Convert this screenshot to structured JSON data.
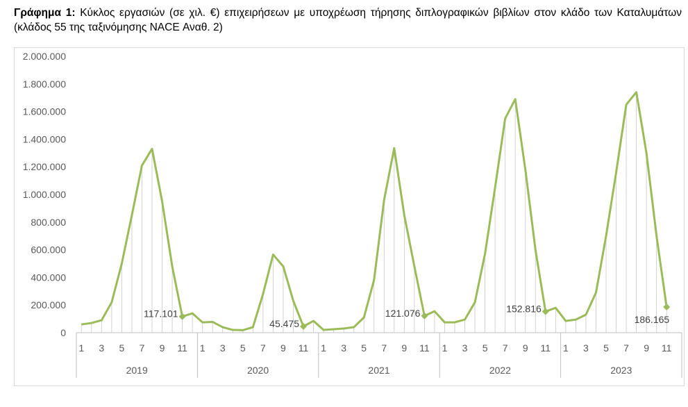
{
  "title": {
    "prefix": "Γράφημα 1:",
    "text": "Κύκλος εργασιών (σε χιλ. €) επιχειρήσεων με υποχρέωση τήρησης διπλογραφικών βιβλίων στον κλάδο των Καταλυμάτων (κλάδος 55 της ταξινόμησης NACE Αναθ. 2)"
  },
  "chart_data": {
    "type": "line",
    "title": "Κύκλος εργασιών (σε χιλ. €) επιχειρήσεων με υποχρέωση τήρησης διπλογραφικών βιβλίων στον κλάδο των Καταλυμάτων (κλάδος 55 της ταξινόμησης NACE Αναθ. 2)",
    "xlabel": "",
    "ylabel": "",
    "ylim": [
      0,
      2000000
    ],
    "y_ticks": [
      "0",
      "200.000",
      "400.000",
      "600.000",
      "800.000",
      "1.000.000",
      "1.200.000",
      "1.400.000",
      "1.600.000",
      "1.800.000",
      "2.000.000"
    ],
    "years": [
      "2019",
      "2020",
      "2021",
      "2022",
      "2023"
    ],
    "month_tick_labels": [
      "1",
      "3",
      "5",
      "7",
      "9",
      "11"
    ],
    "series": [
      {
        "values": [
          60000,
          70000,
          90000,
          220000,
          500000,
          850000,
          1210000,
          1330000,
          950000,
          480000,
          117101,
          140000,
          75000,
          78000,
          40000,
          20000,
          18000,
          40000,
          280000,
          565000,
          480000,
          230000,
          45475,
          85000,
          20000,
          25000,
          30000,
          40000,
          110000,
          380000,
          960000,
          1335000,
          850000,
          480000,
          121076,
          155000,
          75000,
          75000,
          95000,
          220000,
          570000,
          1050000,
          1550000,
          1690000,
          1180000,
          600000,
          152816,
          180000,
          85000,
          95000,
          130000,
          290000,
          700000,
          1160000,
          1650000,
          1740000,
          1300000,
          700000,
          186165
        ]
      }
    ],
    "data_labels": [
      {
        "index": 10,
        "text": "117.101"
      },
      {
        "index": 22,
        "text": "45.475"
      },
      {
        "index": 34,
        "text": "121.076"
      },
      {
        "index": 46,
        "text": "152.816"
      },
      {
        "index": 58,
        "text": "186.165"
      }
    ],
    "grid": false,
    "drop_lines": true,
    "colors": {
      "line": "#9bbb59",
      "drop_lines": "#c8c8c8",
      "axis": "#bfbfbf",
      "text": "#595959"
    }
  }
}
